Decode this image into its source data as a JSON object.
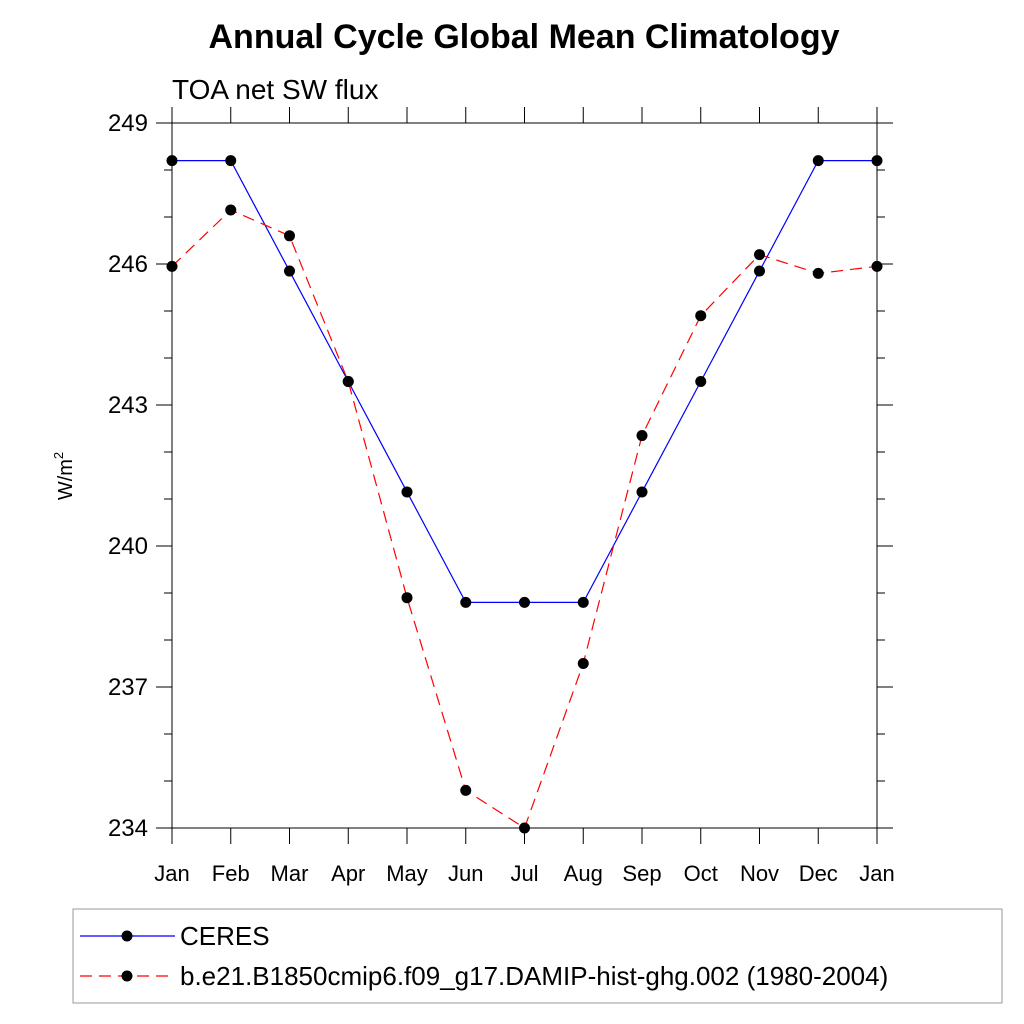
{
  "chart_data": {
    "type": "line",
    "title": "Annual Cycle Global Mean Climatology",
    "subtitle": "TOA net SW flux",
    "ylabel": "W/m",
    "ylabel_superscript": "2",
    "xlabel": "",
    "categories": [
      "Jan",
      "Feb",
      "Mar",
      "Apr",
      "May",
      "Jun",
      "Jul",
      "Aug",
      "Sep",
      "Oct",
      "Nov",
      "Dec",
      "Jan"
    ],
    "yticks": [
      "249",
      "246",
      "243",
      "240",
      "237",
      "234"
    ],
    "ylim": [
      234,
      249
    ],
    "legend_position": "bottom",
    "series": [
      {
        "name": "CERES",
        "color": "#0000ff",
        "line_style": "solid",
        "marker": "filled-circle",
        "values": [
          248.2,
          248.2,
          245.85,
          243.5,
          241.15,
          238.8,
          238.8,
          238.8,
          241.15,
          243.5,
          245.85,
          248.2,
          248.2
        ]
      },
      {
        "name": "b.e21.B1850cmip6.f09_g17.DAMIP-hist-ghg.002 (1980-2004)",
        "color": "#ff0000",
        "line_style": "dashed",
        "marker": "filled-circle",
        "values": [
          245.95,
          247.15,
          246.6,
          243.5,
          238.9,
          234.8,
          234.0,
          237.5,
          242.35,
          244.9,
          246.2,
          245.8,
          245.95
        ]
      }
    ]
  }
}
